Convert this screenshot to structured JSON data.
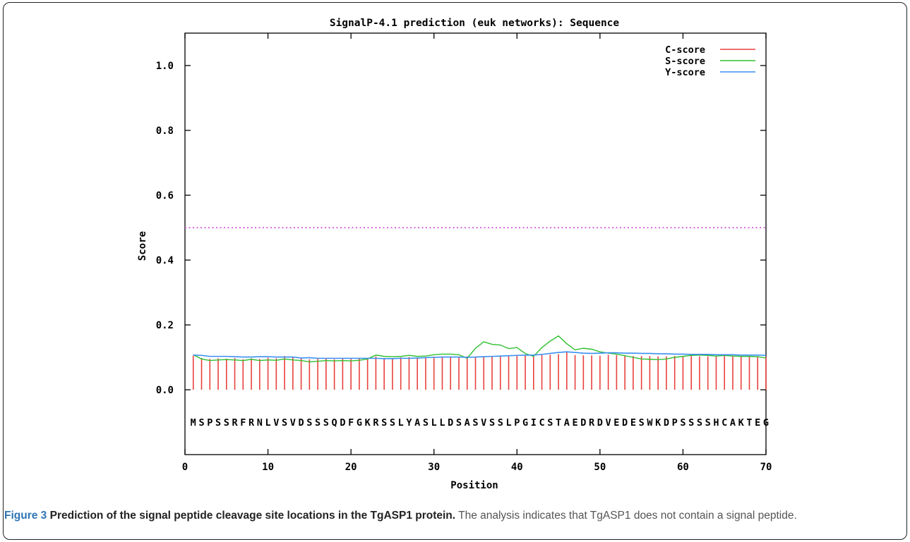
{
  "chart_data": {
    "type": "line",
    "title": "SignalP-4.1 prediction (euk networks): Sequence",
    "xlabel": "Position",
    "ylabel": "Score",
    "xlim": [
      0,
      70
    ],
    "ylim": [
      -0.2,
      1.1
    ],
    "x_ticks": [
      0,
      10,
      20,
      30,
      40,
      50,
      60,
      70
    ],
    "x_tick_labels": [
      "0",
      "10",
      "20",
      "30",
      "40",
      "50",
      "60",
      "70"
    ],
    "y_ticks": [
      0.0,
      0.2,
      0.4,
      0.6,
      0.8,
      1.0
    ],
    "y_tick_labels": [
      "0.0",
      "0.2",
      "0.4",
      "0.6",
      "0.8",
      "1.0"
    ],
    "threshold": 0.5,
    "legend_position": "top-right",
    "sequence": "MSPSSRFRNLVSVDSSSQDFGKRSSLYASLLDSASVSSLPGICSTAEDRDVEDESWKDPSSSSHCAKTEG",
    "series": [
      {
        "name": "C-score",
        "style": "needles",
        "color": "#e8413e",
        "x": [
          1,
          2,
          3,
          4,
          5,
          6,
          7,
          8,
          9,
          10,
          11,
          12,
          13,
          14,
          15,
          16,
          17,
          18,
          19,
          20,
          21,
          22,
          23,
          24,
          25,
          26,
          27,
          28,
          29,
          30,
          31,
          32,
          33,
          34,
          35,
          36,
          37,
          38,
          39,
          40,
          41,
          42,
          43,
          44,
          45,
          46,
          47,
          48,
          49,
          50,
          51,
          52,
          53,
          54,
          55,
          56,
          57,
          58,
          59,
          60,
          61,
          62,
          63,
          64,
          65,
          66,
          67,
          68,
          69,
          70
        ],
        "values": [
          0.105,
          0.098,
          0.095,
          0.097,
          0.096,
          0.098,
          0.094,
          0.097,
          0.095,
          0.099,
          0.097,
          0.104,
          0.1,
          0.097,
          0.094,
          0.095,
          0.096,
          0.094,
          0.097,
          0.095,
          0.097,
          0.096,
          0.103,
          0.098,
          0.097,
          0.1,
          0.101,
          0.099,
          0.101,
          0.102,
          0.102,
          0.101,
          0.102,
          0.103,
          0.1,
          0.101,
          0.102,
          0.103,
          0.103,
          0.105,
          0.106,
          0.104,
          0.107,
          0.108,
          0.11,
          0.117,
          0.107,
          0.106,
          0.106,
          0.105,
          0.108,
          0.107,
          0.105,
          0.104,
          0.104,
          0.104,
          0.103,
          0.103,
          0.104,
          0.104,
          0.104,
          0.103,
          0.103,
          0.103,
          0.106,
          0.104,
          0.103,
          0.103,
          0.103,
          0.102
        ]
      },
      {
        "name": "S-score",
        "style": "line",
        "color": "#2fbf2f",
        "x": [
          1,
          2,
          3,
          4,
          5,
          6,
          7,
          8,
          9,
          10,
          11,
          12,
          13,
          14,
          15,
          16,
          17,
          18,
          19,
          20,
          21,
          22,
          23,
          24,
          25,
          26,
          27,
          28,
          29,
          30,
          31,
          32,
          33,
          34,
          35,
          36,
          37,
          38,
          39,
          40,
          41,
          42,
          43,
          44,
          45,
          46,
          47,
          48,
          49,
          50,
          51,
          52,
          53,
          54,
          55,
          56,
          57,
          58,
          59,
          60,
          61,
          62,
          63,
          64,
          65,
          66,
          67,
          68,
          69,
          70
        ],
        "values": [
          0.108,
          0.095,
          0.09,
          0.092,
          0.093,
          0.092,
          0.09,
          0.094,
          0.09,
          0.092,
          0.091,
          0.095,
          0.092,
          0.09,
          0.086,
          0.088,
          0.09,
          0.089,
          0.09,
          0.089,
          0.091,
          0.095,
          0.107,
          0.103,
          0.102,
          0.103,
          0.106,
          0.103,
          0.104,
          0.108,
          0.11,
          0.11,
          0.108,
          0.097,
          0.128,
          0.148,
          0.14,
          0.138,
          0.127,
          0.13,
          0.112,
          0.103,
          0.13,
          0.15,
          0.166,
          0.142,
          0.123,
          0.128,
          0.125,
          0.117,
          0.113,
          0.11,
          0.105,
          0.1,
          0.095,
          0.094,
          0.093,
          0.095,
          0.1,
          0.103,
          0.106,
          0.107,
          0.106,
          0.104,
          0.106,
          0.104,
          0.103,
          0.103,
          0.102,
          0.098
        ]
      },
      {
        "name": "Y-score",
        "style": "line",
        "color": "#3b8ff0",
        "x": [
          1,
          2,
          3,
          4,
          5,
          6,
          7,
          8,
          9,
          10,
          11,
          12,
          13,
          14,
          15,
          16,
          17,
          18,
          19,
          20,
          21,
          22,
          23,
          24,
          25,
          26,
          27,
          28,
          29,
          30,
          31,
          32,
          33,
          34,
          35,
          36,
          37,
          38,
          39,
          40,
          41,
          42,
          43,
          44,
          45,
          46,
          47,
          48,
          49,
          50,
          51,
          52,
          53,
          54,
          55,
          56,
          57,
          58,
          59,
          60,
          61,
          62,
          63,
          64,
          65,
          66,
          67,
          68,
          69,
          70
        ],
        "values": [
          0.107,
          0.106,
          0.103,
          0.103,
          0.103,
          0.102,
          0.101,
          0.101,
          0.102,
          0.102,
          0.101,
          0.101,
          0.101,
          0.098,
          0.099,
          0.097,
          0.097,
          0.097,
          0.097,
          0.097,
          0.097,
          0.097,
          0.097,
          0.096,
          0.096,
          0.097,
          0.097,
          0.098,
          0.099,
          0.1,
          0.101,
          0.101,
          0.101,
          0.1,
          0.101,
          0.102,
          0.103,
          0.104,
          0.105,
          0.106,
          0.107,
          0.107,
          0.109,
          0.112,
          0.115,
          0.117,
          0.115,
          0.113,
          0.112,
          0.113,
          0.114,
          0.114,
          0.113,
          0.113,
          0.112,
          0.112,
          0.111,
          0.111,
          0.11,
          0.11,
          0.109,
          0.109,
          0.109,
          0.108,
          0.108,
          0.108,
          0.107,
          0.107,
          0.107,
          0.106
        ]
      }
    ]
  },
  "caption": {
    "figure_label": "Figure 3",
    "title": "Prediction of the signal peptide cleavage site locations in the TgASP1 protein.",
    "text": "The analysis indicates that TgASP1 does not contain a signal peptide."
  },
  "colors": {
    "threshold": "#d86be0",
    "figure_label": "#2f74b5",
    "caption_text": "#555555"
  }
}
